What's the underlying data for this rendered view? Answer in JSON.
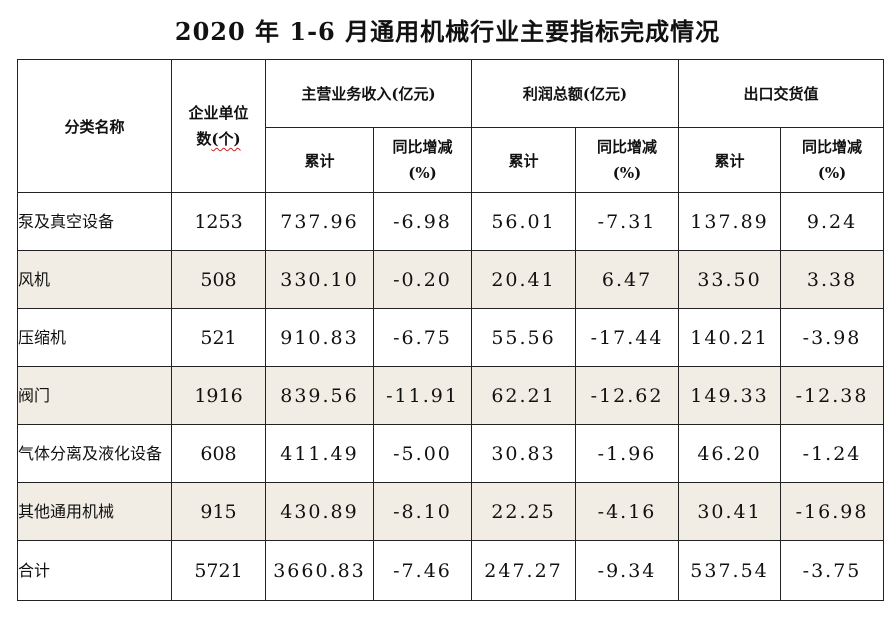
{
  "title": "2020 年 1-6 月通用机械行业主要指标完成情况",
  "header": {
    "category": "分类名称",
    "enterprise_count_line1": "企业单位",
    "enterprise_count_line2_prefix": "数",
    "enterprise_count_line2_mark": "(个)",
    "revenue_group": "主营业务收入(亿元)",
    "profit_group": "利润总额(亿元)",
    "export_group": "出口交货值",
    "cumulative": "累计",
    "yoy_line1": "同比增减",
    "yoy_line2": "(%)"
  },
  "rows": [
    {
      "name": "泵及真空设备",
      "count": "1253",
      "revenue": "737.96",
      "revenue_yoy": "-6.98",
      "profit": "56.01",
      "profit_yoy": "-7.31",
      "export": "137.89",
      "export_yoy": "9.24",
      "shaded": false
    },
    {
      "name": "风机",
      "count": "508",
      "revenue": "330.10",
      "revenue_yoy": "-0.20",
      "profit": "20.41",
      "profit_yoy": "6.47",
      "export": "33.50",
      "export_yoy": "3.38",
      "shaded": true
    },
    {
      "name": "压缩机",
      "count": "521",
      "revenue": "910.83",
      "revenue_yoy": "-6.75",
      "profit": "55.56",
      "profit_yoy": "-17.44",
      "export": "140.21",
      "export_yoy": "-3.98",
      "shaded": false
    },
    {
      "name": "阀门",
      "count": "1916",
      "revenue": "839.56",
      "revenue_yoy": "-11.91",
      "profit": "62.21",
      "profit_yoy": "-12.62",
      "export": "149.33",
      "export_yoy": "-12.38",
      "shaded": true
    },
    {
      "name": "气体分离及液化设备",
      "count": "608",
      "revenue": "411.49",
      "revenue_yoy": "-5.00",
      "profit": "30.83",
      "profit_yoy": "-1.96",
      "export": "46.20",
      "export_yoy": "-1.24",
      "shaded": false
    },
    {
      "name": "其他通用机械",
      "count": "915",
      "revenue": "430.89",
      "revenue_yoy": "-8.10",
      "profit": "22.25",
      "profit_yoy": "-4.16",
      "export": "30.41",
      "export_yoy": "-16.98",
      "shaded": true
    },
    {
      "name": "合计",
      "count": "5721",
      "revenue": "3660.83",
      "revenue_yoy": "-7.46",
      "profit": "247.27",
      "profit_yoy": "-9.34",
      "export": "537.54",
      "export_yoy": "-3.75",
      "shaded": false
    }
  ],
  "colors": {
    "shade": "#f1ede4",
    "border": "#222222",
    "spellcheck_underline": "#d42020"
  }
}
